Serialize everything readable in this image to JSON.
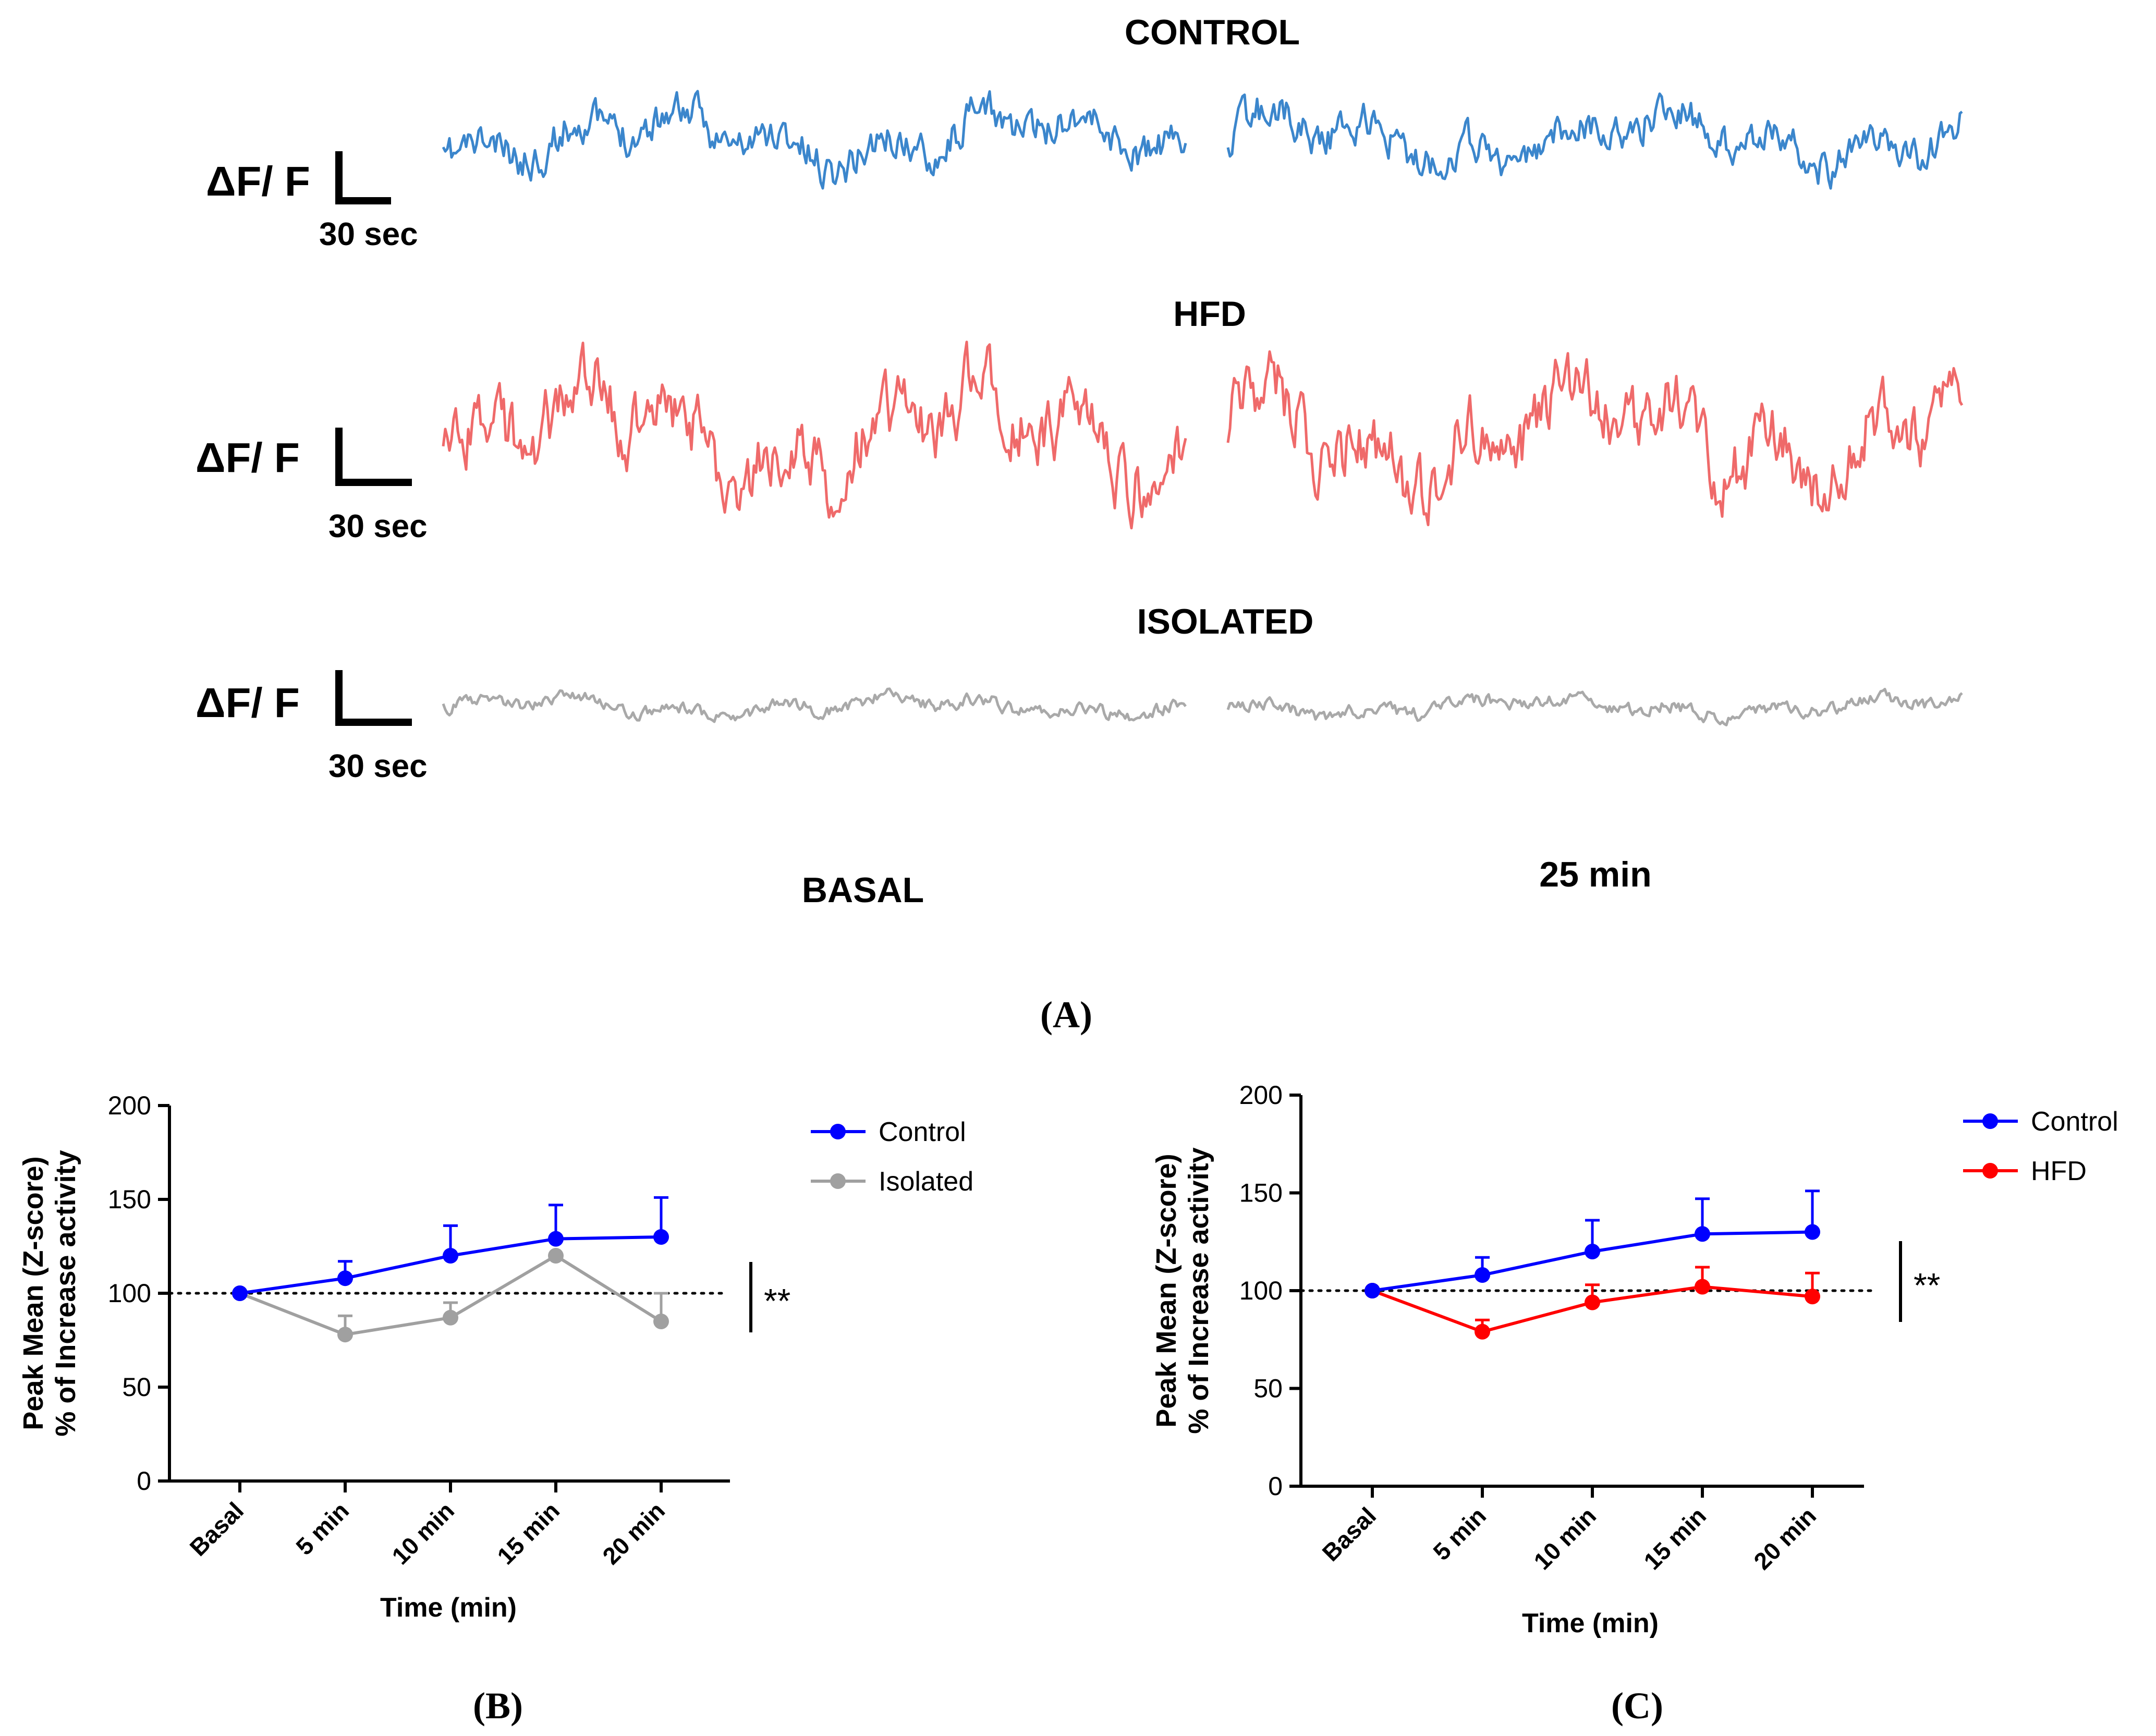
{
  "colors": {
    "control": "#0000ff",
    "isolated": "#a0a0a0",
    "hfd": "#ff0000",
    "trace_control": "#3b86cc",
    "trace_hfd": "#ef6a6a",
    "trace_isolated": "#a9a9a9",
    "axis": "#000000"
  },
  "panel_a": {
    "label": "(A)",
    "rows": [
      {
        "title": "CONTROL",
        "ylabel": "ΔF/ F",
        "scale_label": "30 sec",
        "trace_color": "#3b86cc",
        "seed": 11,
        "amp": 1.0
      },
      {
        "title": "HFD",
        "ylabel": "ΔF/ F",
        "scale_label": "30 sec",
        "trace_color": "#ef6a6a",
        "seed": 23,
        "amp": 1.8
      },
      {
        "title": "ISOLATED",
        "ylabel": "ΔF/ F",
        "scale_label": "30 sec",
        "trace_color": "#a9a9a9",
        "seed": 37,
        "amp": 0.35
      }
    ],
    "column_labels": [
      "BASAL",
      "25 min"
    ]
  },
  "chart_data": [
    {
      "type": "line",
      "panel": "(B)",
      "title": "",
      "xlabel": "Time (min)",
      "ylabel_line1": "Peak Mean (Z-score)",
      "ylabel_line2": "% of Increase activity",
      "categories": [
        "Basal",
        "5 min",
        "10 min",
        "15 min",
        "20 min"
      ],
      "ylim": [
        0,
        200
      ],
      "yticks": [
        0,
        50,
        100,
        150,
        200
      ],
      "reference_line": 100,
      "significance": "**",
      "legend_position": "top-right",
      "series": [
        {
          "name": "Control",
          "color": "#0000ff",
          "values": [
            100,
            108,
            120,
            129,
            130
          ],
          "errors": [
            0,
            9,
            16,
            18,
            21
          ]
        },
        {
          "name": "Isolated",
          "color": "#a0a0a0",
          "values": [
            100,
            78,
            87,
            120,
            85
          ],
          "errors": [
            0,
            10,
            8,
            0,
            15
          ]
        }
      ]
    },
    {
      "type": "line",
      "panel": "(C)",
      "title": "",
      "xlabel": "Time (min)",
      "ylabel_line1": "Peak Mean (Z-score)",
      "ylabel_line2": "% of Increase activity",
      "categories": [
        "Basal",
        "5 min",
        "10 min",
        "15 min",
        "20 min"
      ],
      "ylim": [
        0,
        200
      ],
      "yticks": [
        0,
        50,
        100,
        150,
        200
      ],
      "reference_line": 100,
      "significance": "**",
      "legend_position": "top-right",
      "series": [
        {
          "name": "Control",
          "color": "#0000ff",
          "values": [
            100,
            108,
            120,
            129,
            130
          ],
          "errors": [
            0,
            9,
            16,
            18,
            21
          ]
        },
        {
          "name": "HFD",
          "color": "#ff0000",
          "values": [
            100,
            79,
            94,
            102,
            97
          ],
          "errors": [
            0,
            6,
            9,
            10,
            12
          ]
        }
      ]
    }
  ]
}
